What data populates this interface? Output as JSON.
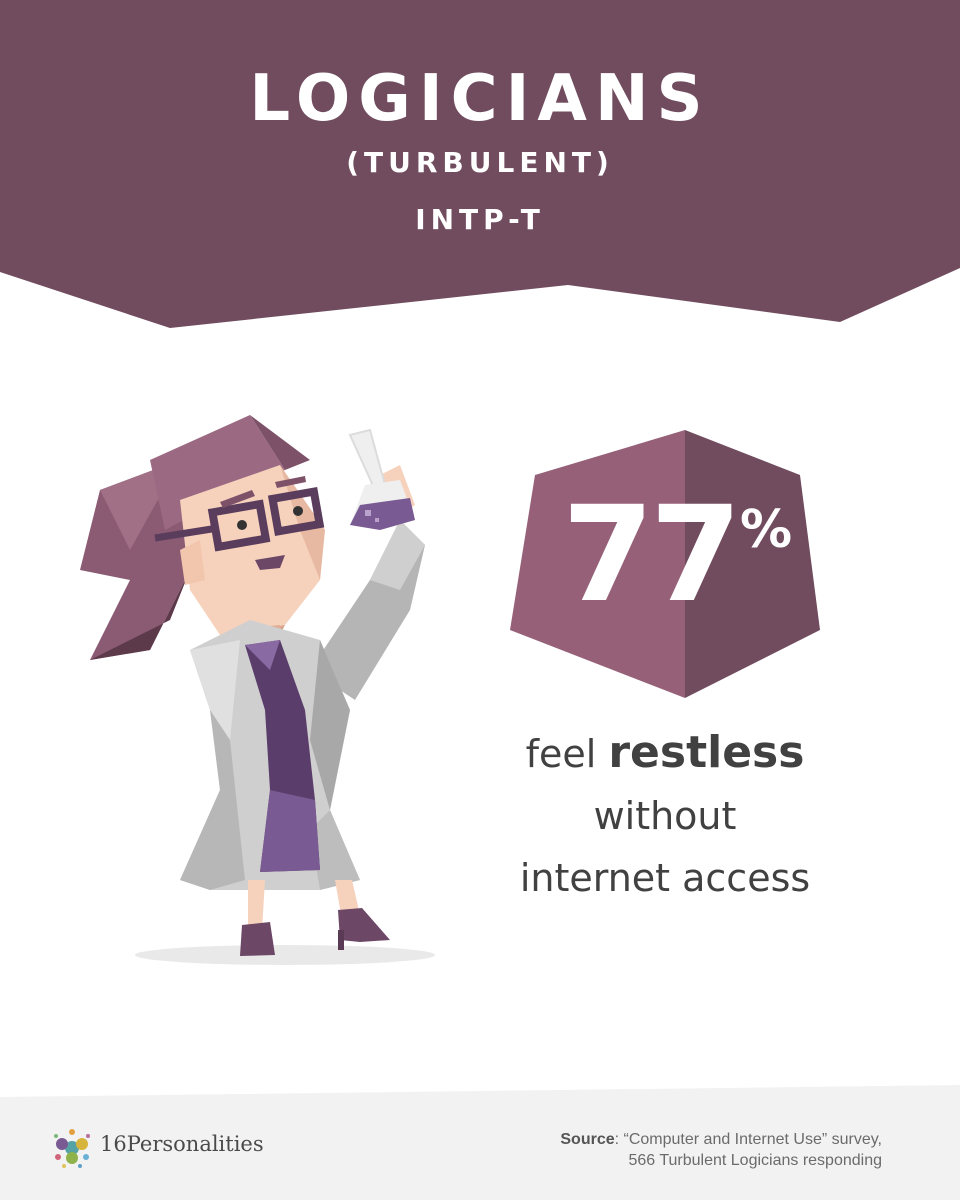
{
  "header": {
    "title": "LOGICIANS",
    "subtitle": "(TURBULENT)",
    "code": "INTP-T",
    "color": "#704c5e"
  },
  "stat": {
    "value": "77",
    "unit": "%",
    "badge_color_light": "#966178",
    "badge_color_dark": "#704c5e"
  },
  "caption": {
    "lead": "feel ",
    "emphasis": "restless",
    "line2": "without",
    "line3": "internet access"
  },
  "footer": {
    "brand": "16Personalities",
    "source_label": "Source",
    "source_line1": ": “Computer and Internet Use” survey,",
    "source_line2": "566 Turbulent Logicians responding",
    "background": "#f2f2f2"
  },
  "illustration": {
    "icon": "logician-scientist-icon"
  }
}
